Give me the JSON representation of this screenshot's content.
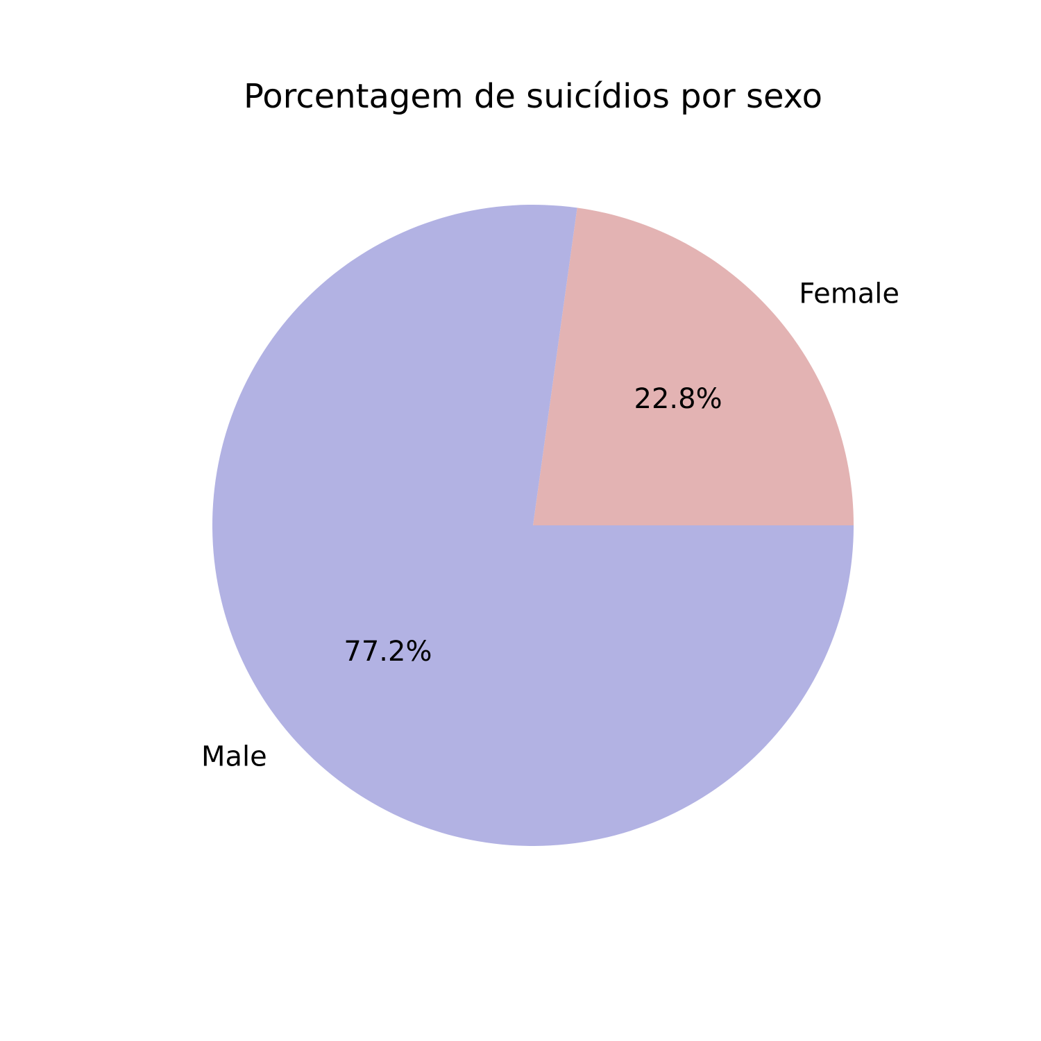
{
  "chart_data": {
    "type": "pie",
    "title": "Porcentagem de suicídios por sexo",
    "categories": [
      "Female",
      "Male"
    ],
    "values": [
      22.8,
      77.2
    ],
    "percent_labels": [
      "22.8%",
      "77.2%"
    ],
    "colors": [
      "#e3b3b3",
      "#b2b2e3"
    ],
    "start_angle_deg": 0,
    "direction": "counterclockwise",
    "legend": "none"
  }
}
